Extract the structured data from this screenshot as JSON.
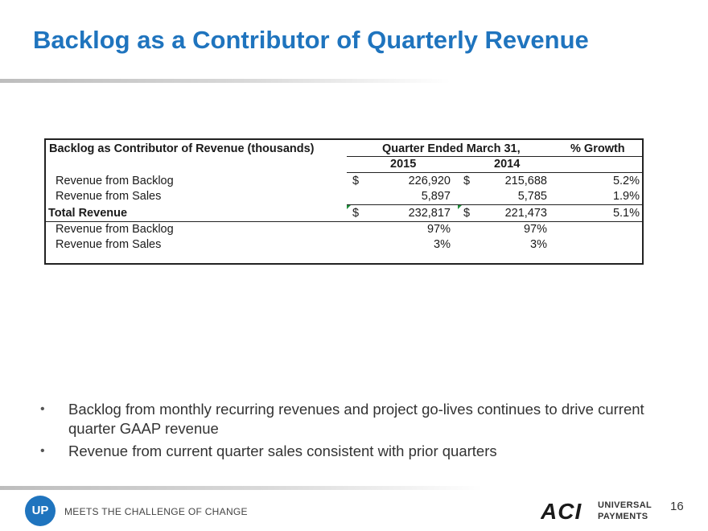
{
  "slide": {
    "title": "Backlog as a Contributor of Quarterly Revenue",
    "page_number": "16"
  },
  "table": {
    "caption": "Backlog as Contributor of Revenue (thousands)",
    "period_header": "Quarter Ended March 31,",
    "growth_header": "% Growth",
    "year1": "2015",
    "year2": "2014",
    "currency": "$",
    "rows": [
      {
        "label": "Revenue from Backlog",
        "v2015": "226,920",
        "v2014": "215,688",
        "growth": "5.2%"
      },
      {
        "label": "Revenue from Sales",
        "v2015": "5,897",
        "v2014": "5,785",
        "growth": "1.9%"
      },
      {
        "label": "Total Revenue",
        "v2015": "232,817",
        "v2014": "221,473",
        "growth": "5.1%"
      },
      {
        "label": "Revenue from Backlog",
        "v2015": "97%",
        "v2014": "97%",
        "growth": ""
      },
      {
        "label": "Revenue from Sales",
        "v2015": "3%",
        "v2014": "3%",
        "growth": ""
      }
    ]
  },
  "bullets": [
    "Backlog from monthly recurring revenues and project go-lives continues to drive current quarter GAAP revenue",
    "Revenue from current quarter sales consistent with prior quarters"
  ],
  "footer": {
    "logo_text": "UP",
    "tagline": "MEETS THE CHALLENGE OF CHANGE",
    "brand_line1": "UNIVERSAL",
    "brand_line2": "PAYMENTS",
    "brand_logo_text": "ACI"
  },
  "colors": {
    "title": "#1f74be",
    "logo": "#1f74be",
    "table_border": "#222222",
    "error_marker": "#1e8c3a"
  }
}
